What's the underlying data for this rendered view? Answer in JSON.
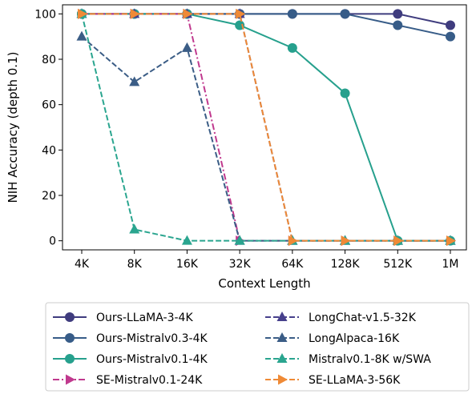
{
  "chart_data": {
    "type": "line",
    "title": "",
    "xlabel": "Context Length",
    "ylabel": "NIH Accuracy (depth 0.1)",
    "categories": [
      "4K",
      "8K",
      "16K",
      "32K",
      "64K",
      "128K",
      "512K",
      "1M"
    ],
    "yticks": [
      0,
      20,
      40,
      60,
      80,
      100
    ],
    "ylim": [
      -4,
      104
    ],
    "grid": false,
    "legend_position": "bottom",
    "series": [
      {
        "name": "Ours-LLaMA-3-4K",
        "color": "#3f3c7e",
        "style": "solid",
        "marker": "circle",
        "values": [
          100,
          100,
          100,
          100,
          100,
          100,
          100,
          95
        ]
      },
      {
        "name": "Ours-Mistralv0.3-4K",
        "color": "#375c88",
        "style": "solid",
        "marker": "circle",
        "values": [
          100,
          100,
          100,
          100,
          100,
          100,
          95,
          90
        ]
      },
      {
        "name": "Ours-Mistralv0.1-4K",
        "color": "#26a08d",
        "style": "solid",
        "marker": "circle",
        "values": [
          100,
          100,
          100,
          95,
          85,
          65,
          0,
          0
        ]
      },
      {
        "name": "SE-Mistralv0.1-24K",
        "color": "#c0398e",
        "style": "dashdot",
        "marker": "triangle-right",
        "values": [
          100,
          100,
          100,
          0,
          0,
          0,
          0,
          0
        ]
      },
      {
        "name": "LongChat-v1.5-32K",
        "color": "#47408c",
        "style": "dashed",
        "marker": "triangle-up",
        "values": [
          100,
          100,
          100,
          100,
          0,
          0,
          0,
          0
        ]
      },
      {
        "name": "LongAlpaca-16K",
        "color": "#3b5d86",
        "style": "dashed",
        "marker": "triangle-up",
        "values": [
          90,
          70,
          85,
          0,
          0,
          0,
          0,
          0
        ]
      },
      {
        "name": "Mistralv0.1-8K w/SWA",
        "color": "#2aa58f",
        "style": "dashed",
        "marker": "triangle-up",
        "values": [
          100,
          5,
          0,
          0,
          0,
          0,
          0,
          0
        ]
      },
      {
        "name": "SE-LLaMA-3-56K",
        "color": "#ef8a36",
        "style": "dashed",
        "marker": "triangle-right",
        "values": [
          100,
          100,
          100,
          100,
          0,
          0,
          0,
          0
        ]
      }
    ]
  }
}
